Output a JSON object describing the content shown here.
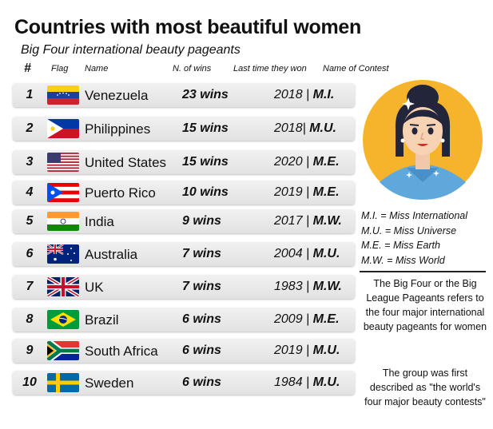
{
  "chart_data": {
    "type": "table",
    "title": "Countries with most beautiful women",
    "subtitle": "Big Four international beauty pageants",
    "columns": [
      "#",
      "Flag",
      "Name",
      "N. of wins",
      "Last time they won",
      "Name of Contest"
    ],
    "rows": [
      {
        "rank": "1",
        "flag": "venezuela-flag",
        "name": "Venezuela",
        "wins": "23 wins",
        "year": "2018",
        "sep": " | ",
        "contest": "M.I."
      },
      {
        "rank": "2",
        "flag": "philippines-flag",
        "name": "Philippines",
        "wins": "15 wins",
        "year": "2018",
        "sep": "| ",
        "contest": "M.U."
      },
      {
        "rank": "3",
        "flag": "united-states-flag",
        "name": "United States",
        "wins": "15 wins",
        "year": "2020",
        "sep": " | ",
        "contest": "M.E."
      },
      {
        "rank": "4",
        "flag": "puerto-rico-flag",
        "name": "Puerto Rico",
        "wins": "10 wins",
        "year": "2019",
        "sep": " | ",
        "contest": "M.E."
      },
      {
        "rank": "5",
        "flag": "india-flag",
        "name": "India",
        "wins": "9 wins",
        "year": "2017",
        "sep": " | ",
        "contest": "M.W."
      },
      {
        "rank": "6",
        "flag": "australia-flag",
        "name": "Australia",
        "wins": "7 wins",
        "year": "2004",
        "sep": " | ",
        "contest": "M.U."
      },
      {
        "rank": "7",
        "flag": "uk-flag",
        "name": "UK",
        "wins": "7 wins",
        "year": "1983",
        "sep": " | ",
        "contest": "M.W."
      },
      {
        "rank": "8",
        "flag": "brazil-flag",
        "name": "Brazil",
        "wins": "6 wins",
        "year": "2009",
        "sep": " | ",
        "contest": "M.E."
      },
      {
        "rank": "9",
        "flag": "south-africa-flag",
        "name": "South Africa",
        "wins": "6 wins",
        "year": "2019",
        "sep": " | ",
        "contest": "M.U."
      },
      {
        "rank": "10",
        "flag": "sweden-flag",
        "name": "Sweden",
        "wins": "6 wins",
        "year": "1984",
        "sep": " | ",
        "contest": "M.U."
      }
    ],
    "values": [
      23,
      15,
      15,
      10,
      9,
      7,
      7,
      6,
      6,
      6
    ],
    "legend": [
      "M.I. = Miss International",
      "M.U. = Miss Universe",
      "M.E. = Miss Earth",
      "M.W. = Miss World"
    ],
    "description": [
      "The Big Four or the Big League Pageants refers to the four major international beauty pageants for women",
      "The group was first described as \"the world's four major beauty contests\""
    ]
  },
  "colors": {
    "row_background": "#e8e8e8",
    "avatar_circle": "#f6b42c",
    "avatar_hair": "#23253a",
    "avatar_dress": "#5fa8dc"
  }
}
